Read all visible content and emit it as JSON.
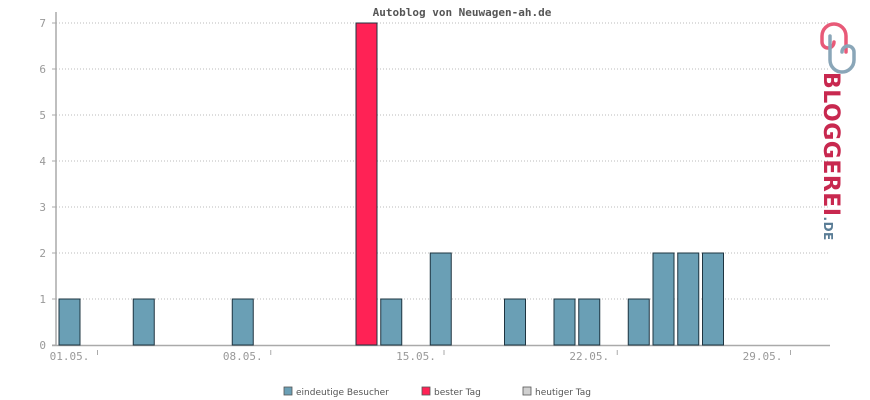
{
  "chart_data": {
    "type": "bar",
    "title": "Autoblog von Neuwagen-ah.de",
    "xlabel": "",
    "ylabel": "",
    "ylim": [
      0,
      7
    ],
    "yticks": [
      "0",
      "1",
      "2",
      "3",
      "4",
      "5",
      "6",
      "7"
    ],
    "xtick_labels": [
      {
        "day": 1,
        "label": "01.05."
      },
      {
        "day": 8,
        "label": "08.05."
      },
      {
        "day": 15,
        "label": "15.05."
      },
      {
        "day": 22,
        "label": "22.05."
      },
      {
        "day": 29,
        "label": "29.05."
      }
    ],
    "days": [
      1,
      2,
      3,
      4,
      5,
      6,
      7,
      8,
      9,
      10,
      11,
      12,
      13,
      14,
      15,
      16,
      17,
      18,
      19,
      20,
      21,
      22,
      23,
      24,
      25,
      26,
      27,
      28,
      29,
      30,
      31
    ],
    "values": [
      1,
      0,
      0,
      1,
      0,
      0,
      0,
      1,
      0,
      0,
      0,
      0,
      7,
      1,
      0,
      2,
      0,
      0,
      1,
      0,
      1,
      1,
      0,
      1,
      2,
      2,
      2,
      0,
      0,
      0,
      0
    ],
    "best_day": 13,
    "grid": true,
    "legend_position": "bottom-center",
    "colors": {
      "unique": "#6a9fb5",
      "best": "#ff2255",
      "today": "#d0d0d0",
      "bar_stroke": "#1e3440",
      "grid": "#bbbbbb",
      "axis": "#aaaaaa"
    },
    "legend": [
      {
        "key": "unique",
        "label": "eindeutige Besucher"
      },
      {
        "key": "best",
        "label": "bester Tag"
      },
      {
        "key": "today",
        "label": "heutiger Tag"
      }
    ]
  },
  "logo": {
    "text_main": "BLOGGEREI",
    "text_suffix": ".DE",
    "color_main": "#c8284f",
    "color_suffix": "#5a7d96"
  }
}
